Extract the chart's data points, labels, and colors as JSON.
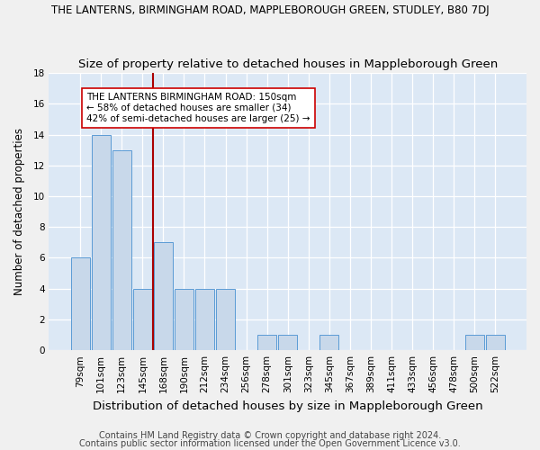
{
  "title": "THE LANTERNS, BIRMINGHAM ROAD, MAPPLEBOROUGH GREEN, STUDLEY, B80 7DJ",
  "subtitle": "Size of property relative to detached houses in Mappleborough Green",
  "xlabel": "Distribution of detached houses by size in Mappleborough Green",
  "ylabel": "Number of detached properties",
  "categories": [
    "79sqm",
    "101sqm",
    "123sqm",
    "145sqm",
    "168sqm",
    "190sqm",
    "212sqm",
    "234sqm",
    "256sqm",
    "278sqm",
    "301sqm",
    "323sqm",
    "345sqm",
    "367sqm",
    "389sqm",
    "411sqm",
    "433sqm",
    "456sqm",
    "478sqm",
    "500sqm",
    "522sqm"
  ],
  "values": [
    6,
    14,
    13,
    4,
    7,
    4,
    4,
    4,
    0,
    1,
    1,
    0,
    1,
    0,
    0,
    0,
    0,
    0,
    0,
    1,
    1
  ],
  "bar_color": "#c8d8ea",
  "bar_edge_color": "#5b9bd5",
  "background_color": "#dce8f5",
  "grid_color": "#ffffff",
  "vline_x": 3.5,
  "vline_color": "#aa0000",
  "annotation_text": "THE LANTERNS BIRMINGHAM ROAD: 150sqm\n← 58% of detached houses are smaller (34)\n42% of semi-detached houses are larger (25) →",
  "annotation_box_color": "#ffffff",
  "annotation_box_edge": "#cc0000",
  "ylim": [
    0,
    18
  ],
  "yticks": [
    0,
    2,
    4,
    6,
    8,
    10,
    12,
    14,
    16,
    18
  ],
  "footer1": "Contains HM Land Registry data © Crown copyright and database right 2024.",
  "footer2": "Contains public sector information licensed under the Open Government Licence v3.0.",
  "title_fontsize": 8.5,
  "subtitle_fontsize": 9.5,
  "xlabel_fontsize": 9.5,
  "ylabel_fontsize": 8.5,
  "tick_fontsize": 7.5,
  "annotation_fontsize": 7.5,
  "footer_fontsize": 7.0,
  "fig_facecolor": "#f0f0f0"
}
